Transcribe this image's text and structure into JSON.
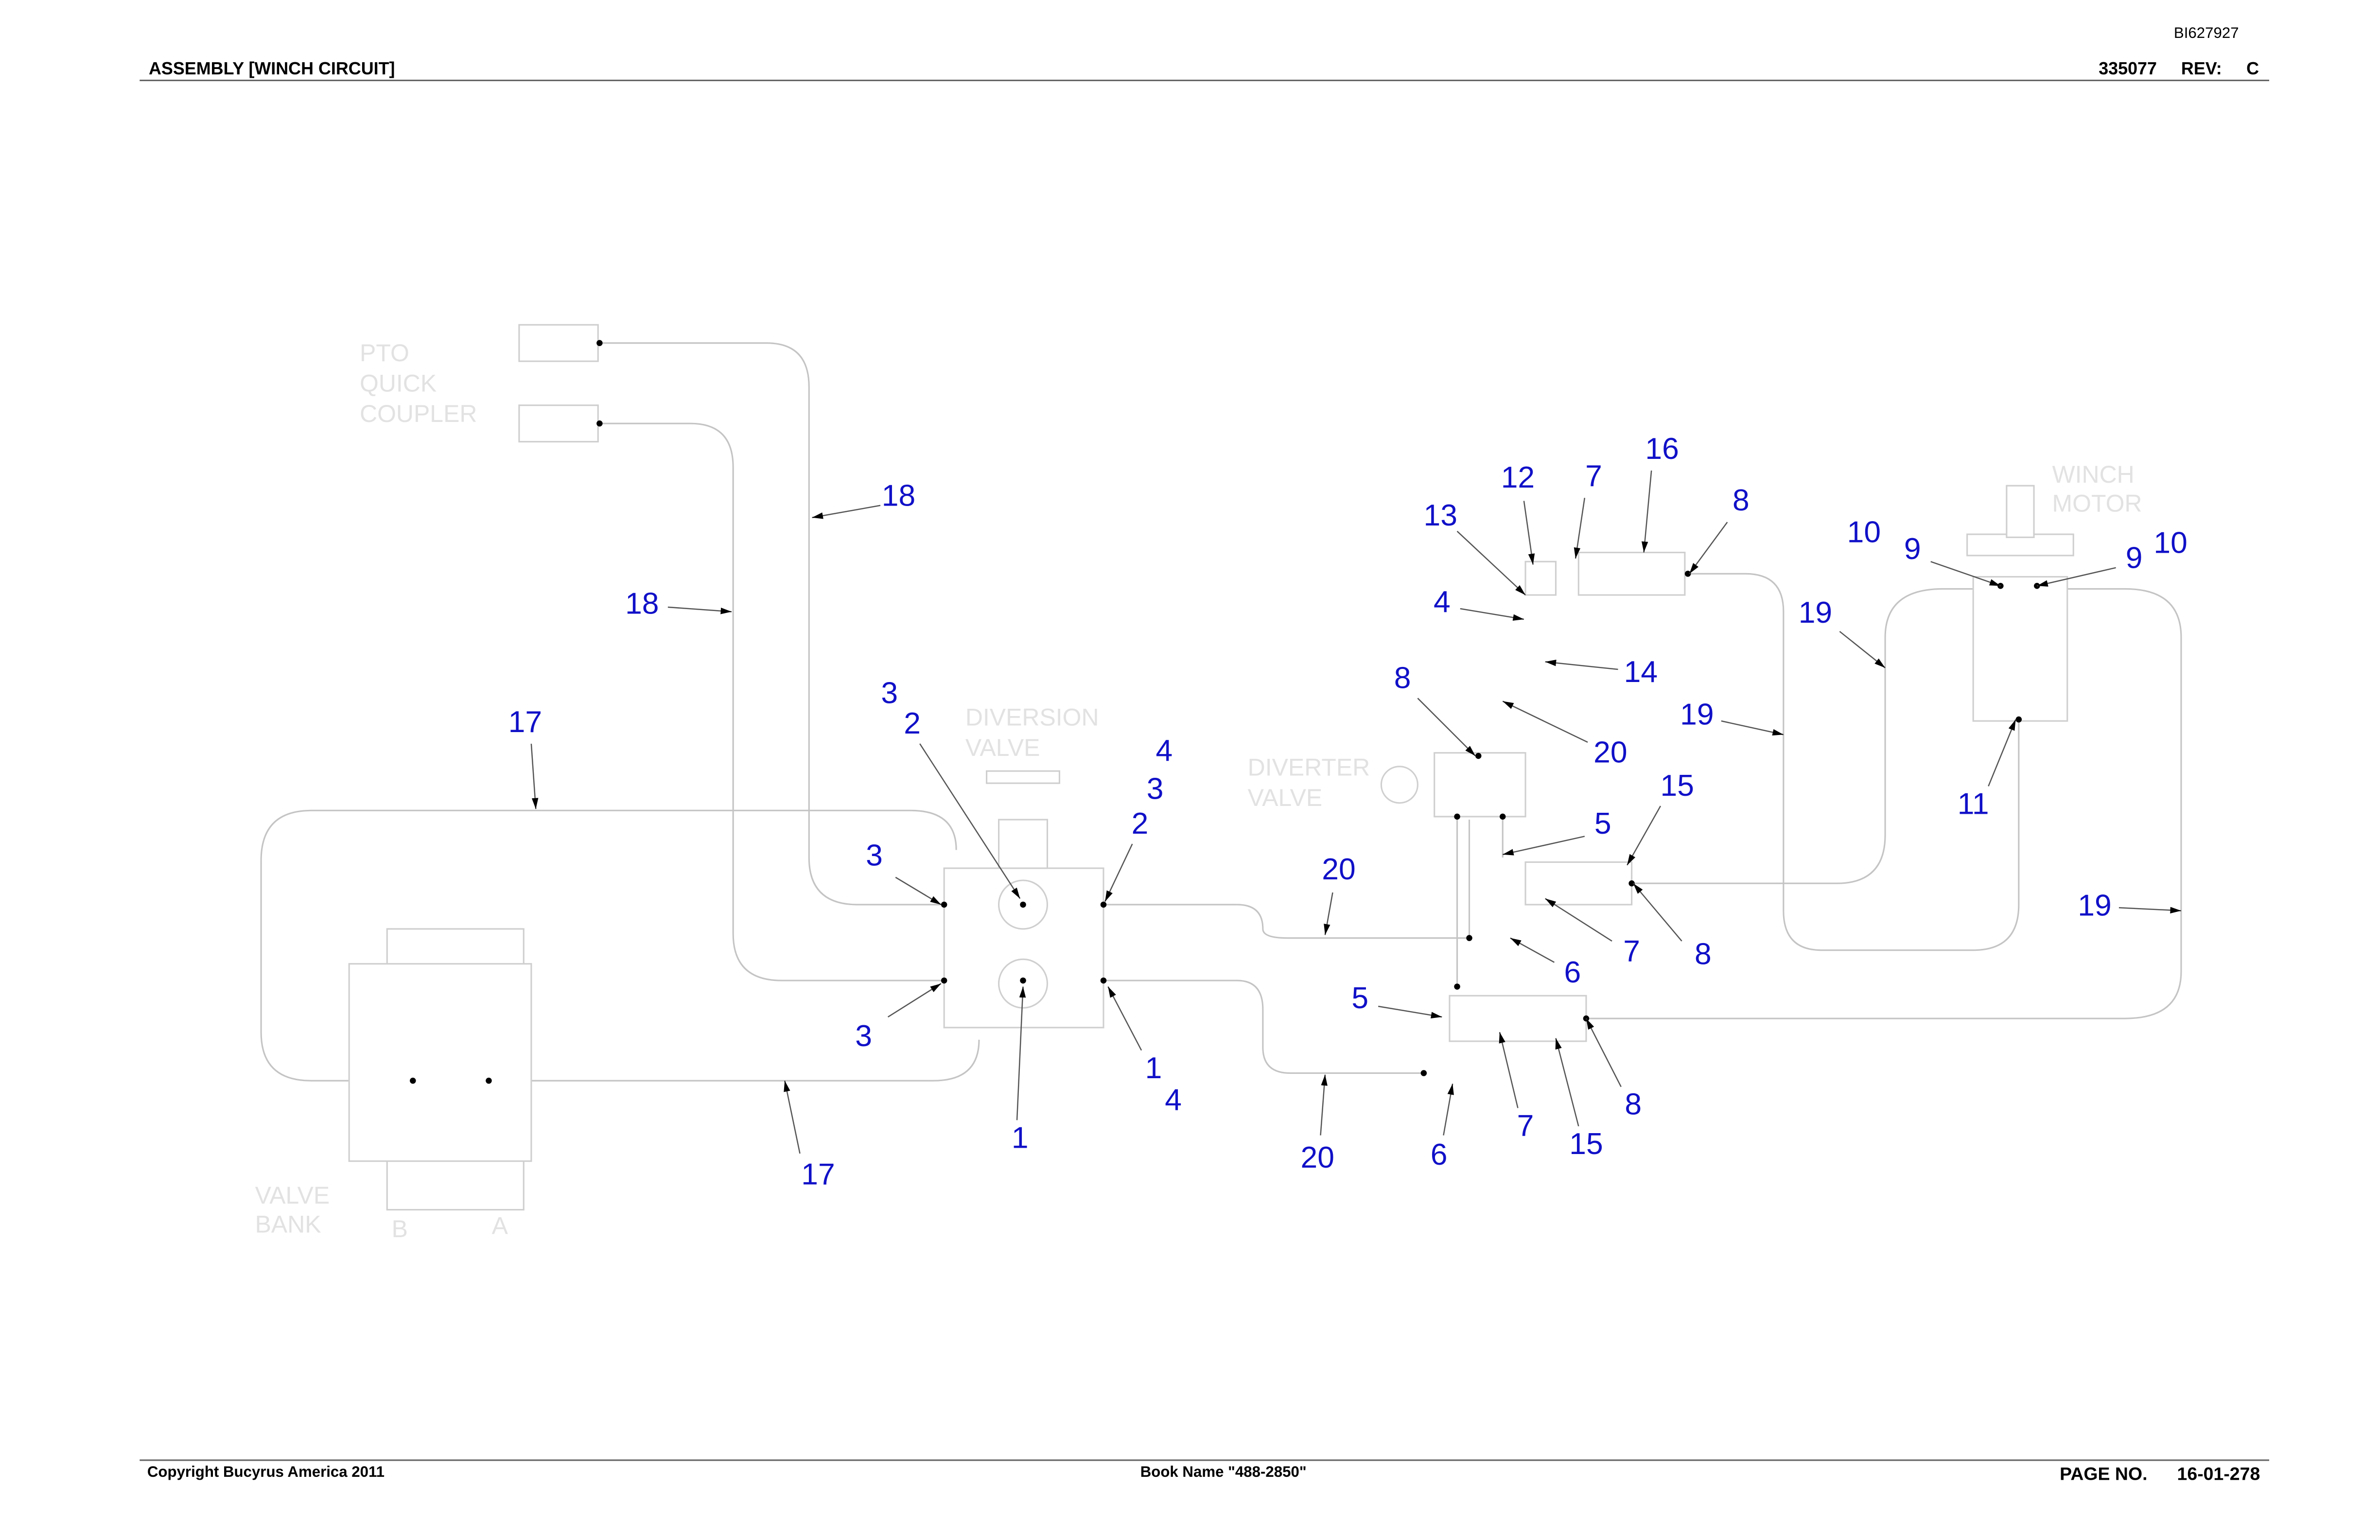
{
  "header": {
    "doc_id": "BI627927",
    "title": "ASSEMBLY [WINCH CIRCUIT]",
    "part_no": "335077",
    "rev_label": "REV:",
    "rev": "C"
  },
  "footer": {
    "copyright": "Copyright Bucyrus America 2011",
    "book": "Book Name \"488-2850\"",
    "page_label": "PAGE NO.",
    "page": "16-01-278"
  },
  "components": {
    "pto": [
      "PTO",
      "QUICK",
      "COUPLER"
    ],
    "diversion_valve": [
      "DIVERSION",
      "VALVE"
    ],
    "diverter_valve": [
      "DIVERTER",
      "VALVE"
    ],
    "winch_motor": [
      "WINCH",
      "MOTOR"
    ],
    "valve_bank": [
      "VALVE",
      "BANK"
    ],
    "bank_ports": [
      "B",
      "A"
    ]
  },
  "callouts": [
    "18",
    "18",
    "17",
    "17",
    "3",
    "2",
    "3",
    "3",
    "1",
    "4",
    "3",
    "2",
    "1",
    "4",
    "20",
    "20",
    "13",
    "12",
    "7",
    "16",
    "8",
    "4",
    "14",
    "8",
    "20",
    "15",
    "5",
    "7",
    "8",
    "6",
    "5",
    "7",
    "15",
    "8",
    "6",
    "10",
    "9",
    "9",
    "10",
    "19",
    "19",
    "11",
    "19"
  ]
}
